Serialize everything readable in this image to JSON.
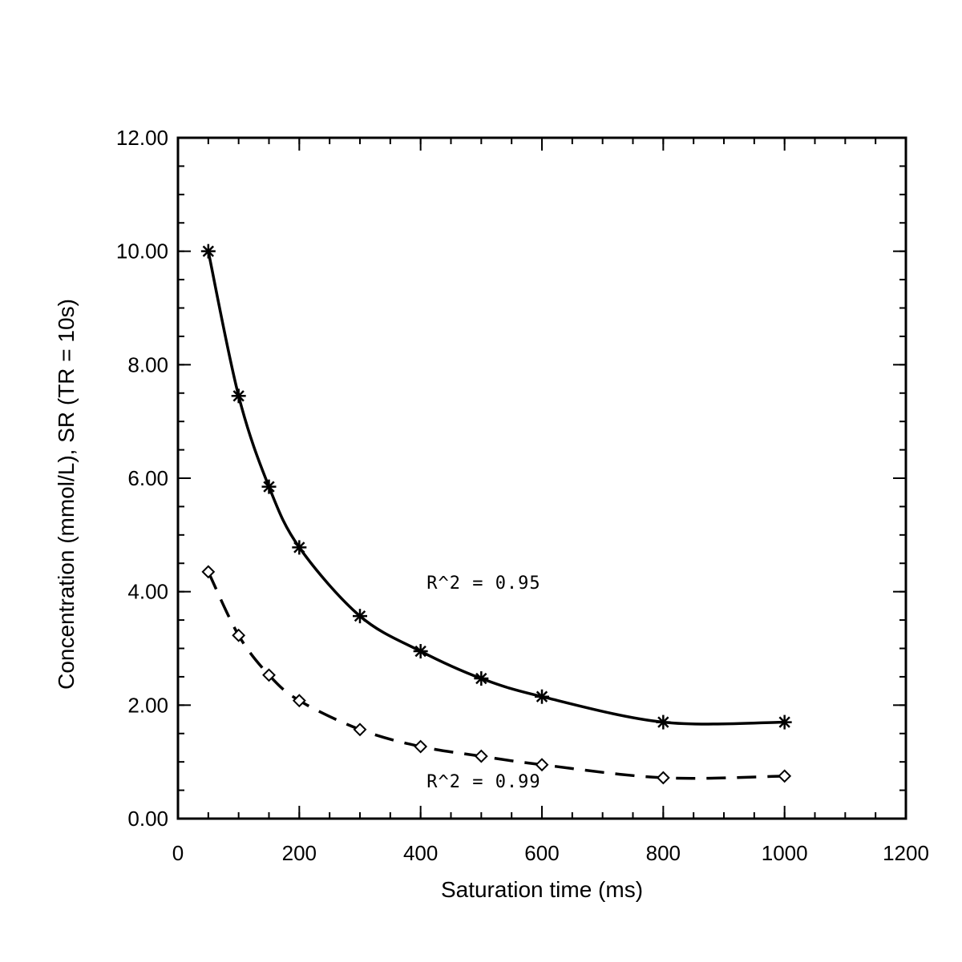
{
  "chart_data": {
    "type": "line",
    "title": "",
    "xlabel": "Saturation time (ms)",
    "ylabel": "Concentration (mmol/L), SR (TR = 10s)",
    "xlim": [
      0,
      1200
    ],
    "ylim": [
      0,
      12
    ],
    "x_ticks": [
      "0",
      "200",
      "400",
      "600",
      "800",
      "1000",
      "1200"
    ],
    "y_ticks": [
      "0.00",
      "2.00",
      "4.00",
      "6.00",
      "8.00",
      "10.00",
      "12.00"
    ],
    "grid": false,
    "legend": "none",
    "series": [
      {
        "marker": "asterisk",
        "line_style": "solid",
        "color": "#000000",
        "x": [
          50,
          100,
          150,
          200,
          300,
          400,
          500,
          600,
          800,
          1000
        ],
        "y": [
          10.0,
          7.45,
          5.85,
          4.78,
          3.57,
          2.95,
          2.47,
          2.15,
          1.7,
          1.7
        ]
      },
      {
        "marker": "diamond",
        "line_style": "dashed",
        "color": "#000000",
        "x": [
          50,
          100,
          150,
          200,
          300,
          400,
          500,
          600,
          800,
          1000
        ],
        "y": [
          4.35,
          3.23,
          2.53,
          2.08,
          1.57,
          1.27,
          1.1,
          0.95,
          0.72,
          0.75
        ]
      }
    ],
    "annotations": [
      {
        "text": "R^2 = 0.95",
        "x": 410,
        "y": 4.05
      },
      {
        "text": "R^2 = 0.99",
        "x": 410,
        "y": 0.55
      }
    ]
  }
}
